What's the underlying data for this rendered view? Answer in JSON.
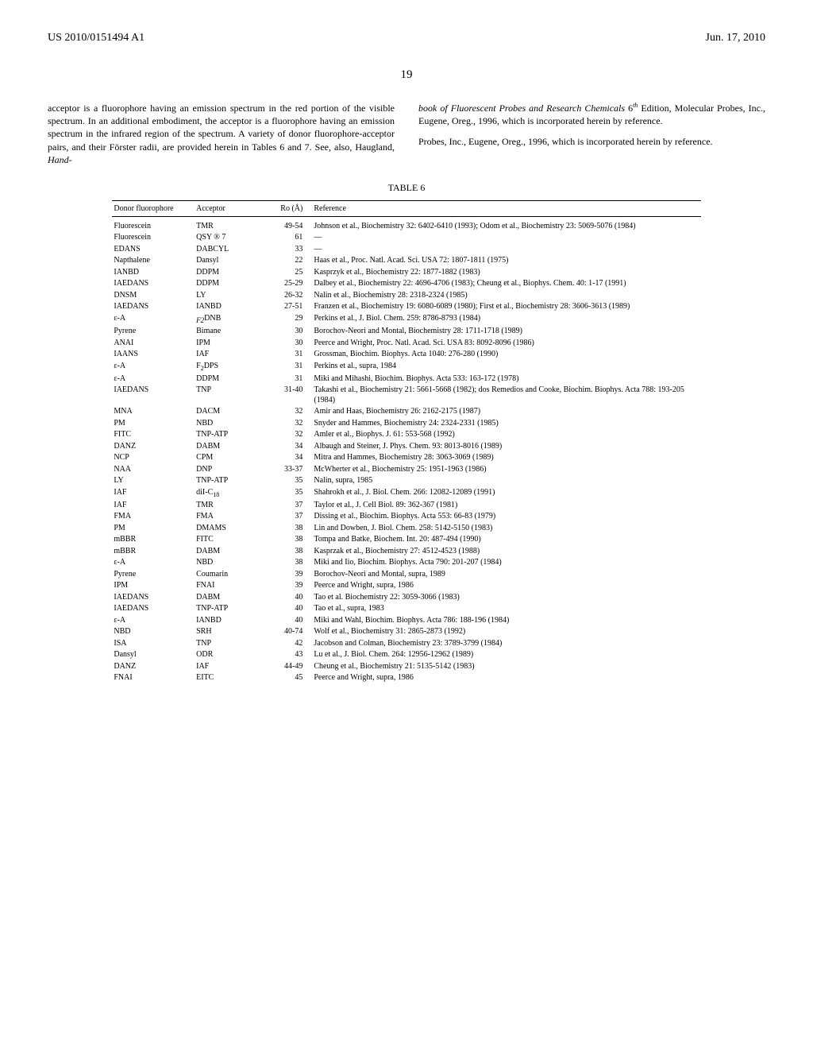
{
  "header": {
    "patent_no": "US 2010/0151494 A1",
    "date": "Jun. 17, 2010"
  },
  "page_number": "19",
  "left_para": "acceptor is a fluorophore having an emission spectrum in the red portion of the visible spectrum. In an additional embodiment, the acceptor is a fluorophore having an emission spectrum in the infrared region of the spectrum. A variety of donor fluorophore-acceptor pairs, and their Förster radii, are provided herein in Tables 6 and 7. See, also, Haugland, ",
  "left_para_italic": "Hand-",
  "right_para_italic": "book of Fluorescent Probes and Research Chemicals",
  "right_para_after": " 6",
  "right_para_sup": "th",
  "right_para_tail": " Edition, Molecular Probes, Inc., Eugene, Oreg., 1996, which is incorporated herein by reference.",
  "right_para2": "Probes, Inc., Eugene, Oreg., 1996, which is incorporated herein by reference.",
  "table_caption": "TABLE 6",
  "columns": [
    "Donor fluorophore",
    "Acceptor",
    "Ro (Å)",
    "Reference"
  ],
  "rows": [
    [
      "Fluorescein",
      "TMR",
      "49-54",
      "Johnson et al., Biochemistry 32: 6402-6410 (1993); Odom et al., Biochemistry 23: 5069-5076 (1984)"
    ],
    [
      "Fluorescein",
      "QSY ® 7",
      "61",
      "—"
    ],
    [
      "EDANS",
      "DABCYL",
      "33",
      "—"
    ],
    [
      "Napthalene",
      "Dansyl",
      "22",
      "Haas et al., Proc. Natl. Acad. Sci. USA 72: 1807-1811 (1975)"
    ],
    [
      "IANBD",
      "DDPM",
      "25",
      "Kasprzyk et al., Biochemistry 22: 1877-1882 (1983)"
    ],
    [
      "IAEDANS",
      "DDPM",
      "25-29",
      "Dalbey et al., Biochemistry 22: 4696-4706 (1983); Cheung et al., Biophys. Chem. 40: 1-17 (1991)"
    ],
    [
      "DNSM",
      "LY",
      "26-32",
      "Nalin et al., Biochemistry 28: 2318-2324 (1985)"
    ],
    [
      "IAEDANS",
      "IANBD",
      "27-51",
      "Franzen et al., Biochemistry 19: 6080-6089 (1980); First et al., Biochemistry 28: 3606-3613 (1989)"
    ],
    [
      "ε-A",
      "F2DNB",
      "29",
      "Perkins et al., J. Biol. Chem. 259: 8786-8793 (1984)"
    ],
    [
      "Pyrene",
      "Bimane",
      "30",
      "Borochov-Neori and Montal, Biochemistry 28: 1711-1718 (1989)"
    ],
    [
      "ANAI",
      "IPM",
      "30",
      "Peerce and Wright, Proc. Natl. Acad. Sci. USA 83: 8092-8096 (1986)"
    ],
    [
      "IAANS",
      "IAF",
      "31",
      "Grossman, Biochim. Biophys. Acta 1040: 276-280 (1990)"
    ],
    [
      "ε-A",
      "F2DPS",
      "31",
      "Perkins et al., supra, 1984"
    ],
    [
      "ε-A",
      "DDPM",
      "31",
      "Miki and Mihashi, Biochim. Biophys. Acta 533: 163-172 (1978)"
    ],
    [
      "IAEDANS",
      "TNP",
      "31-40",
      "Takashi et al., Biochemistry 21: 5661-5668 (1982); dos Remedios and Cooke, Biochim. Biophys. Acta 788: 193-205 (1984)"
    ],
    [
      "MNA",
      "DACM",
      "32",
      "Amir and Haas, Biochemistry 26: 2162-2175 (1987)"
    ],
    [
      "PM",
      "NBD",
      "32",
      "Snyder and Hammes, Biochemistry 24: 2324-2331 (1985)"
    ],
    [
      "FITC",
      "TNP-ATP",
      "32",
      "Amler et al., Biophys. J. 61: 553-568 (1992)"
    ],
    [
      "DANZ",
      "DABM",
      "34",
      "Albaugh and Steiner, J. Phys. Chem. 93: 8013-8016 (1989)"
    ],
    [
      "NCP",
      "CPM",
      "34",
      "Mitra and Hammes, Biochemistry 28: 3063-3069 (1989)"
    ],
    [
      "NAA",
      "DNP",
      "33-37",
      "McWherter et al., Biochemistry 25: 1951-1963 (1986)"
    ],
    [
      "LY",
      "TNP-ATP",
      "35",
      "Nalin, supra, 1985"
    ],
    [
      "IAF",
      "diI-C18",
      "35",
      "Shahrokh et al., J. Biol. Chem. 266: 12082-12089 (1991)"
    ],
    [
      "IAF",
      "TMR",
      "37",
      "Taylor et al., J. Cell Biol. 89: 362-367 (1981)"
    ],
    [
      "FMA",
      "FMA",
      "37",
      "Dissing et al., Biochim. Biophys. Acta 553: 66-83 (1979)"
    ],
    [
      "PM",
      "DMAMS",
      "38",
      "Lin and Dowben, J. Biol. Chem. 258: 5142-5150 (1983)"
    ],
    [
      "mBBR",
      "FITC",
      "38",
      "Tompa and Batke, Biochem. Int. 20: 487-494 (1990)"
    ],
    [
      "mBBR",
      "DABM",
      "38",
      "Kasprzak et al., Biochemistry 27: 4512-4523 (1988)"
    ],
    [
      "ε-A",
      "NBD",
      "38",
      "Miki and Iio, Biochim. Biophys. Acta 790: 201-207 (1984)"
    ],
    [
      "Pyrene",
      "Coumarin",
      "39",
      "Borochov-Neori and Montal, supra, 1989"
    ],
    [
      "IPM",
      "FNAI",
      "39",
      "Peerce and Wright, supra, 1986"
    ],
    [
      "IAEDANS",
      "DABM",
      "40",
      "Tao et al. Biochemistry 22: 3059-3066 (1983)"
    ],
    [
      "IAEDANS",
      "TNP-ATP",
      "40",
      "Tao et al., supra, 1983"
    ],
    [
      "ε-A",
      "IANBD",
      "40",
      "Miki and Wahl, Biochim. Biophys. Acta 786: 188-196 (1984)"
    ],
    [
      "NBD",
      "SRH",
      "40-74",
      "Wolf et al., Biochemistry 31: 2865-2873 (1992)"
    ],
    [
      "ISA",
      "TNP",
      "42",
      "Jacobson and Colman, Biochemistry 23: 3789-3799 (1984)"
    ],
    [
      "Dansyl",
      "ODR",
      "43",
      "Lu et al., J. Biol. Chem. 264: 12956-12962 (1989)"
    ],
    [
      "DANZ",
      "IAF",
      "44-49",
      "Cheung et al., Biochemistry 21: 5135-5142 (1983)"
    ],
    [
      "FNAI",
      "EITC",
      "45",
      "Peerce and Wright, supra, 1986"
    ]
  ]
}
